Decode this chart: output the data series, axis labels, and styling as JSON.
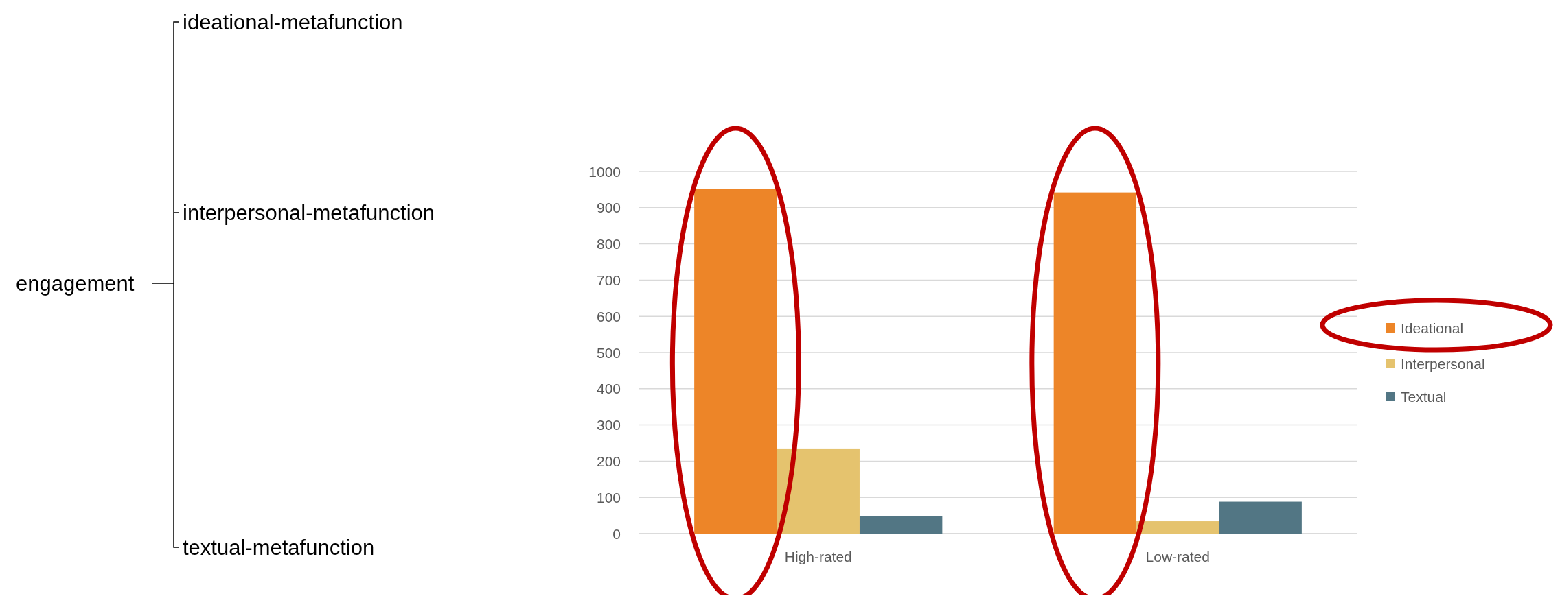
{
  "chart_data": {
    "type": "bar",
    "categories": [
      "High-rated",
      "Low-rated"
    ],
    "series": [
      {
        "name": "Ideational",
        "color": "#ed8528",
        "values": [
          951,
          942
        ]
      },
      {
        "name": "Interpersonal",
        "color": "#e5c36e",
        "values": [
          235,
          34
        ]
      },
      {
        "name": "Textual",
        "color": "#527684",
        "values": [
          48,
          88
        ]
      }
    ],
    "ylim": [
      0,
      1000
    ],
    "yticks": [
      0,
      100,
      200,
      300,
      400,
      500,
      600,
      700,
      800,
      900,
      1000
    ],
    "grid": "y",
    "legend": "right",
    "annotations": [
      "engagement",
      "ideational-metafunction",
      "interpersonal-metafunction",
      "textual-metafunction"
    ]
  }
}
